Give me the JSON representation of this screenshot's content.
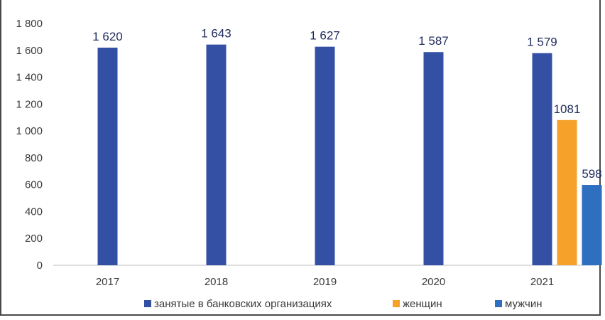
{
  "chart_data": {
    "type": "bar",
    "categories": [
      "2017",
      "2018",
      "2019",
      "2020",
      "2021"
    ],
    "series": [
      {
        "name": "занятые в банковских организациях",
        "color": "#3450a5",
        "values": [
          1620,
          1643,
          1627,
          1587,
          1579
        ],
        "labels": [
          "1 620",
          "1 643",
          "1 627",
          "1 587",
          "1 579"
        ]
      },
      {
        "name": "женщин",
        "color": "#f5a12a",
        "values": [
          null,
          null,
          null,
          null,
          1081
        ],
        "labels": [
          "",
          "",
          "",
          "",
          "1081"
        ]
      },
      {
        "name": "мужчин",
        "color": "#2f6fc0",
        "values": [
          null,
          null,
          null,
          null,
          598
        ],
        "labels": [
          "",
          "",
          "",
          "",
          "598"
        ]
      }
    ],
    "ylim": [
      0,
      1800
    ],
    "yticks": [
      0,
      200,
      400,
      600,
      800,
      1000,
      1200,
      1400,
      1600,
      1800
    ],
    "ytick_labels": [
      "0",
      "200",
      "400",
      "600",
      "800",
      "1 000",
      "1 200",
      "1 400",
      "1 600",
      "1 800"
    ],
    "grid": false,
    "legend_position": "bottom",
    "title": "",
    "xlabel": "",
    "ylabel": ""
  }
}
